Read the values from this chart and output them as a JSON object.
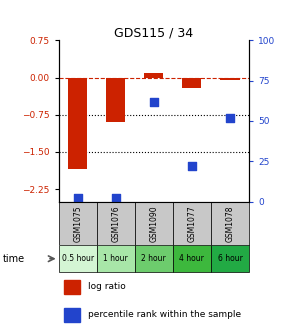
{
  "title": "GDS115 / 34",
  "samples": [
    "GSM1075",
    "GSM1076",
    "GSM1090",
    "GSM1077",
    "GSM1078"
  ],
  "time_labels": [
    "0.5 hour",
    "1 hour",
    "2 hour",
    "4 hour",
    "6 hour"
  ],
  "log_ratio": [
    -1.85,
    -0.9,
    0.1,
    -0.22,
    -0.05
  ],
  "percentile": [
    2,
    2,
    62,
    22,
    52
  ],
  "bar_color": "#cc2200",
  "dot_color": "#2244cc",
  "ylim_left": [
    -2.5,
    0.75
  ],
  "ylim_right": [
    0,
    100
  ],
  "yticks_left": [
    0.75,
    0,
    -0.75,
    -1.5,
    -2.25
  ],
  "yticks_right": [
    100,
    75,
    50,
    25,
    0
  ],
  "hline_y": [
    0,
    -0.75,
    -1.5
  ],
  "hline_styles": [
    "--",
    ":",
    ":"
  ],
  "hline_colors": [
    "#cc2200",
    "#000000",
    "#000000"
  ],
  "bar_width": 0.5,
  "dot_size": 28,
  "sample_bg": "#c8c8c8",
  "time_colors": [
    "#d4f5d4",
    "#a8e6a8",
    "#6dcc6d",
    "#3db83d",
    "#22aa44"
  ]
}
